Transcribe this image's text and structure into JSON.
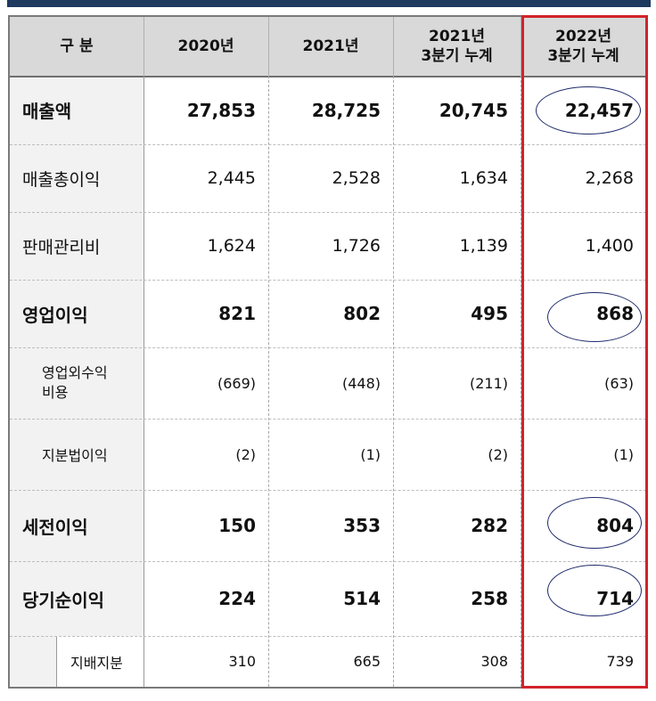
{
  "header": {
    "category": "구 분",
    "col_2020": "2020년",
    "col_2021": "2021년",
    "col_2021q3": "2021년\n3분기 누계",
    "col_2022q3": "2022년\n3분기 누계"
  },
  "rows": [
    {
      "label": "매출액",
      "v2020": "27,853",
      "v2021": "28,725",
      "v2021q3": "20,745",
      "v2022q3": "22,457"
    },
    {
      "label": "매출총이익",
      "v2020": "2,445",
      "v2021": "2,528",
      "v2021q3": "1,634",
      "v2022q3": "2,268"
    },
    {
      "label": "판매관리비",
      "v2020": "1,624",
      "v2021": "1,726",
      "v2021q3": "1,139",
      "v2022q3": "1,400"
    },
    {
      "label": "영업이익",
      "v2020": "821",
      "v2021": "802",
      "v2021q3": "495",
      "v2022q3": "868"
    },
    {
      "label": "영업외수익\n비용",
      "v2020": "(669)",
      "v2021": "(448)",
      "v2021q3": "(211)",
      "v2022q3": "(63)"
    },
    {
      "label": "지분법이익",
      "v2020": "(2)",
      "v2021": "(1)",
      "v2021q3": "(2)",
      "v2022q3": "(1)"
    },
    {
      "label": "세전이익",
      "v2020": "150",
      "v2021": "353",
      "v2021q3": "282",
      "v2022q3": "804"
    },
    {
      "label": "당기순이익",
      "v2020": "224",
      "v2021": "514",
      "v2021q3": "258",
      "v2022q3": "714"
    },
    {
      "label": "지배지분",
      "v2020": "310",
      "v2021": "665",
      "v2021q3": "308",
      "v2022q3": "739"
    }
  ],
  "colors": {
    "header_bg": "#d9d9d9",
    "label_bg": "#f2f2f2",
    "highlight_border": "#d2232a",
    "oval_stroke": "#1f2a6b",
    "top_bar": "#1e3a5f"
  }
}
